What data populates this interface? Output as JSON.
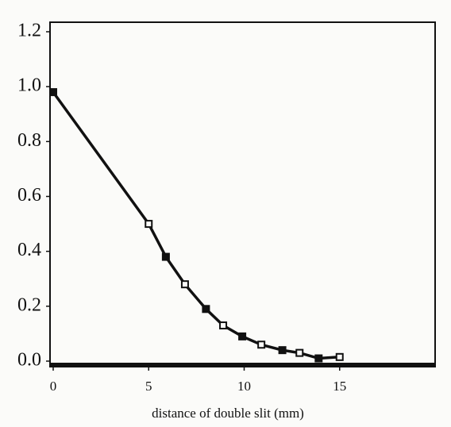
{
  "chart_data": {
    "type": "line",
    "x_label": "distance of double slit (mm)",
    "x": [
      0,
      5,
      5.9,
      6.9,
      8,
      8.9,
      9.9,
      10.9,
      12,
      12.9,
      13.9,
      15
    ],
    "series": [
      {
        "color": "#111111",
        "values": [
          0.98,
          0.5,
          0.38,
          0.28,
          0.19,
          0.13,
          0.09,
          0.06,
          0.04,
          0.03,
          0.01,
          0.015
        ]
      }
    ],
    "xlim": [
      0,
      20
    ],
    "xticks": [
      0,
      5,
      10,
      15
    ],
    "ylim": [
      0,
      1.2
    ],
    "yticks": [
      {
        "value": 0,
        "label": "0.0"
      },
      0.2,
      0.4,
      0.6,
      0.8,
      {
        "value": 1,
        "label": "1.0"
      },
      1.2
    ]
  }
}
